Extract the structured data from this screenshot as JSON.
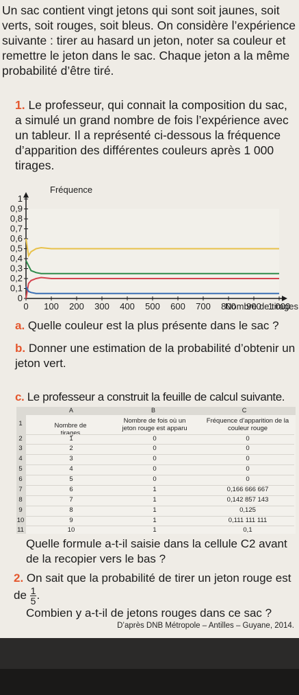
{
  "intro": "Un sac contient vingt jetons qui sont soit jaunes, soit verts, soit rouges, soit bleus. On considère l’expérience suivante : tirer au hasard un jeton, noter sa couleur et remettre le jeton dans le sac. Chaque jeton a la même probabilité d’être tiré.",
  "q1": {
    "number": "1.",
    "text": "Le professeur, qui connait la composition du sac, a simulé un grand nombre de fois l’expérience avec un tableur. Il a représenté ci-dessous la fréquence d’apparition des différentes couleurs après 1 000 tirages.",
    "a_letter": "a.",
    "a_text": "Quelle couleur est la plus présente dans le sac ?",
    "b_letter": "b.",
    "b_text": "Donner une estimation de la probabilité d’obtenir un jeton vert.",
    "c_letter": "c.",
    "c_text": "Le professeur a construit la feuille de calcul suivante.",
    "c_question": "Quelle formule a-t-il saisie dans la cellule C2 avant de la recopier vers le bas ?"
  },
  "q2": {
    "number": "2.",
    "text_before": "On sait que la probabilité de tirer un jeton rouge est de",
    "frac_num": "1",
    "frac_den": "5",
    "text_after": ".",
    "question": "Combien y a-t-il de jetons rouges dans ce sac ?"
  },
  "source": "D’après DNB Métropole – Antilles – Guyane, 2014.",
  "chart_data": {
    "type": "line",
    "ylabel": "Fréquence",
    "xlabel": "Nombre de tirages",
    "xlim": [
      0,
      1000
    ],
    "ylim": [
      0,
      1
    ],
    "x_ticks": [
      "0",
      "100",
      "200",
      "300",
      "400",
      "500",
      "600",
      "700",
      "800",
      "900",
      "1 000"
    ],
    "y_ticks": [
      "0",
      "0,1",
      "0,2",
      "0,3",
      "0,4",
      "0,5",
      "0,6",
      "0,7",
      "0,8",
      "0,9",
      "1"
    ],
    "series": [
      {
        "color": "#e8c14a",
        "x": [
          0,
          10,
          20,
          40,
          60,
          100,
          200,
          300,
          400,
          500,
          600,
          700,
          800,
          900,
          1000
        ],
        "values": [
          0.6,
          0.43,
          0.47,
          0.5,
          0.51,
          0.5,
          0.5,
          0.5,
          0.5,
          0.5,
          0.5,
          0.5,
          0.5,
          0.5,
          0.5
        ]
      },
      {
        "color": "#2e8a4a",
        "x": [
          0,
          10,
          20,
          40,
          60,
          100,
          200,
          300,
          400,
          500,
          600,
          700,
          800,
          900,
          1000
        ],
        "values": [
          0.38,
          0.33,
          0.28,
          0.26,
          0.25,
          0.25,
          0.25,
          0.25,
          0.25,
          0.25,
          0.25,
          0.25,
          0.25,
          0.25,
          0.25
        ]
      },
      {
        "color": "#d5444f",
        "x": [
          0,
          10,
          20,
          40,
          60,
          100,
          200,
          300,
          400,
          500,
          600,
          700,
          800,
          900,
          1000
        ],
        "values": [
          0.0,
          0.15,
          0.18,
          0.2,
          0.21,
          0.2,
          0.2,
          0.2,
          0.2,
          0.2,
          0.2,
          0.2,
          0.2,
          0.2,
          0.2
        ]
      },
      {
        "color": "#3a6fb5",
        "x": [
          0,
          10,
          20,
          40,
          60,
          100,
          200,
          300,
          400,
          500,
          600,
          700,
          800,
          900,
          1000
        ],
        "values": [
          0.12,
          0.07,
          0.06,
          0.05,
          0.05,
          0.05,
          0.05,
          0.05,
          0.05,
          0.05,
          0.05,
          0.05,
          0.05,
          0.05,
          0.05
        ]
      }
    ]
  },
  "sheet": {
    "cols": [
      "A",
      "B",
      "C"
    ],
    "headers": [
      "Nombre de tirages",
      "Nombre de fois où un jeton rouge est apparu",
      "Fréquence d’apparition de la couleur rouge"
    ],
    "row_numbers": [
      "1",
      "2",
      "3",
      "4",
      "5",
      "6",
      "7",
      "8",
      "9",
      "10",
      "11"
    ],
    "rows": [
      [
        "1",
        "0",
        "0"
      ],
      [
        "2",
        "0",
        "0"
      ],
      [
        "3",
        "0",
        "0"
      ],
      [
        "4",
        "0",
        "0"
      ],
      [
        "5",
        "0",
        "0"
      ],
      [
        "6",
        "1",
        "0,166 666 667"
      ],
      [
        "7",
        "1",
        "0,142 857 143"
      ],
      [
        "8",
        "1",
        "0,125"
      ],
      [
        "9",
        "1",
        "0,111 111 111"
      ],
      [
        "10",
        "1",
        "0,1"
      ]
    ]
  }
}
